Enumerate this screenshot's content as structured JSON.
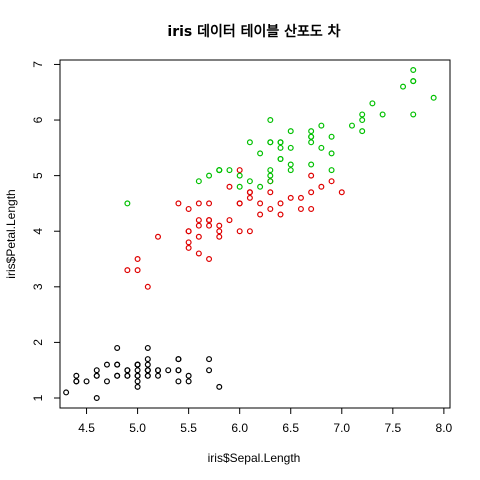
{
  "chart_data": {
    "type": "scatter",
    "title": "iris 데이터 테이블 산포도 차",
    "xlabel": "iris$Sepal.Length",
    "ylabel": "iris$Petal.Length",
    "xlim": [
      4.24,
      8.06
    ],
    "ylim": [
      0.82,
      7.08
    ],
    "xticks": [
      4.5,
      5.0,
      5.5,
      6.0,
      6.5,
      7.0,
      7.5,
      8.0
    ],
    "xtick_labels": [
      "4.5",
      "5.0",
      "5.5",
      "6.0",
      "6.5",
      "7.0",
      "7.5",
      "8.0"
    ],
    "yticks": [
      1,
      2,
      3,
      4,
      5,
      6,
      7
    ],
    "ytick_labels": [
      "1",
      "2",
      "3",
      "4",
      "5",
      "6",
      "7"
    ],
    "grid": false,
    "marker": "open-circle",
    "series": [
      {
        "color": "#000000",
        "points": [
          [
            5.1,
            1.4
          ],
          [
            4.9,
            1.4
          ],
          [
            4.7,
            1.3
          ],
          [
            4.6,
            1.5
          ],
          [
            5.0,
            1.4
          ],
          [
            5.4,
            1.7
          ],
          [
            4.6,
            1.4
          ],
          [
            5.0,
            1.5
          ],
          [
            4.4,
            1.4
          ],
          [
            4.9,
            1.5
          ],
          [
            5.4,
            1.5
          ],
          [
            4.8,
            1.6
          ],
          [
            4.8,
            1.4
          ],
          [
            4.3,
            1.1
          ],
          [
            5.8,
            1.2
          ],
          [
            5.7,
            1.5
          ],
          [
            5.4,
            1.3
          ],
          [
            5.1,
            1.4
          ],
          [
            5.7,
            1.7
          ],
          [
            5.1,
            1.5
          ],
          [
            5.4,
            1.7
          ],
          [
            5.1,
            1.5
          ],
          [
            4.6,
            1.0
          ],
          [
            5.1,
            1.7
          ],
          [
            4.8,
            1.9
          ],
          [
            5.0,
            1.6
          ],
          [
            5.0,
            1.6
          ],
          [
            5.2,
            1.5
          ],
          [
            5.2,
            1.4
          ],
          [
            4.7,
            1.6
          ],
          [
            4.8,
            1.6
          ],
          [
            5.4,
            1.5
          ],
          [
            5.2,
            1.5
          ],
          [
            5.5,
            1.4
          ],
          [
            4.9,
            1.5
          ],
          [
            5.0,
            1.2
          ],
          [
            5.5,
            1.3
          ],
          [
            4.9,
            1.4
          ],
          [
            4.4,
            1.3
          ],
          [
            5.1,
            1.5
          ],
          [
            5.0,
            1.3
          ],
          [
            4.5,
            1.3
          ],
          [
            4.4,
            1.3
          ],
          [
            5.0,
            1.6
          ],
          [
            5.1,
            1.9
          ],
          [
            4.8,
            1.4
          ],
          [
            5.1,
            1.6
          ],
          [
            4.6,
            1.4
          ],
          [
            5.3,
            1.5
          ],
          [
            5.0,
            1.4
          ]
        ]
      },
      {
        "color": "#df0000",
        "points": [
          [
            7.0,
            4.7
          ],
          [
            6.4,
            4.5
          ],
          [
            6.9,
            4.9
          ],
          [
            5.5,
            4.0
          ],
          [
            6.5,
            4.6
          ],
          [
            5.7,
            4.5
          ],
          [
            6.3,
            4.7
          ],
          [
            4.9,
            3.3
          ],
          [
            6.6,
            4.6
          ],
          [
            5.2,
            3.9
          ],
          [
            5.0,
            3.5
          ],
          [
            5.9,
            4.2
          ],
          [
            6.0,
            4.0
          ],
          [
            6.1,
            4.7
          ],
          [
            5.6,
            3.6
          ],
          [
            6.7,
            4.4
          ],
          [
            5.6,
            4.5
          ],
          [
            5.8,
            4.1
          ],
          [
            6.2,
            4.5
          ],
          [
            5.6,
            3.9
          ],
          [
            5.9,
            4.8
          ],
          [
            6.1,
            4.0
          ],
          [
            6.3,
            4.9
          ],
          [
            6.1,
            4.7
          ],
          [
            6.4,
            4.3
          ],
          [
            6.6,
            4.4
          ],
          [
            6.8,
            4.8
          ],
          [
            6.7,
            5.0
          ],
          [
            6.0,
            4.5
          ],
          [
            5.7,
            3.5
          ],
          [
            5.5,
            3.8
          ],
          [
            5.5,
            3.7
          ],
          [
            5.8,
            3.9
          ],
          [
            6.0,
            5.1
          ],
          [
            5.4,
            4.5
          ],
          [
            6.0,
            4.5
          ],
          [
            6.7,
            4.7
          ],
          [
            6.3,
            4.4
          ],
          [
            5.6,
            4.1
          ],
          [
            5.5,
            4.0
          ],
          [
            5.5,
            4.4
          ],
          [
            6.1,
            4.6
          ],
          [
            5.8,
            4.0
          ],
          [
            5.0,
            3.3
          ],
          [
            5.6,
            4.2
          ],
          [
            5.7,
            4.2
          ],
          [
            5.7,
            4.2
          ],
          [
            6.2,
            4.3
          ],
          [
            5.1,
            3.0
          ],
          [
            5.7,
            4.1
          ]
        ]
      },
      {
        "color": "#00c000",
        "points": [
          [
            6.3,
            6.0
          ],
          [
            5.8,
            5.1
          ],
          [
            7.1,
            5.9
          ],
          [
            6.3,
            5.6
          ],
          [
            6.5,
            5.8
          ],
          [
            7.6,
            6.6
          ],
          [
            4.9,
            4.5
          ],
          [
            7.3,
            6.3
          ],
          [
            6.7,
            5.8
          ],
          [
            7.2,
            6.1
          ],
          [
            6.5,
            5.1
          ],
          [
            6.4,
            5.3
          ],
          [
            6.8,
            5.5
          ],
          [
            5.7,
            5.0
          ],
          [
            5.8,
            5.1
          ],
          [
            6.4,
            5.3
          ],
          [
            6.5,
            5.5
          ],
          [
            7.7,
            6.7
          ],
          [
            7.7,
            6.9
          ],
          [
            6.0,
            5.0
          ],
          [
            6.9,
            5.7
          ],
          [
            5.6,
            4.9
          ],
          [
            7.7,
            6.7
          ],
          [
            6.3,
            4.9
          ],
          [
            6.7,
            5.7
          ],
          [
            7.2,
            6.0
          ],
          [
            6.2,
            4.8
          ],
          [
            6.1,
            4.9
          ],
          [
            6.4,
            5.6
          ],
          [
            7.2,
            5.8
          ],
          [
            7.4,
            6.1
          ],
          [
            7.9,
            6.4
          ],
          [
            6.4,
            5.6
          ],
          [
            6.3,
            5.1
          ],
          [
            6.1,
            5.6
          ],
          [
            7.7,
            6.1
          ],
          [
            6.3,
            5.6
          ],
          [
            6.4,
            5.5
          ],
          [
            6.0,
            4.8
          ],
          [
            6.9,
            5.4
          ],
          [
            6.7,
            5.6
          ],
          [
            6.9,
            5.1
          ],
          [
            5.8,
            5.1
          ],
          [
            6.8,
            5.9
          ],
          [
            6.7,
            5.7
          ],
          [
            6.7,
            5.2
          ],
          [
            6.3,
            5.0
          ],
          [
            6.5,
            5.2
          ],
          [
            6.2,
            5.4
          ],
          [
            5.9,
            5.1
          ]
        ]
      }
    ]
  }
}
